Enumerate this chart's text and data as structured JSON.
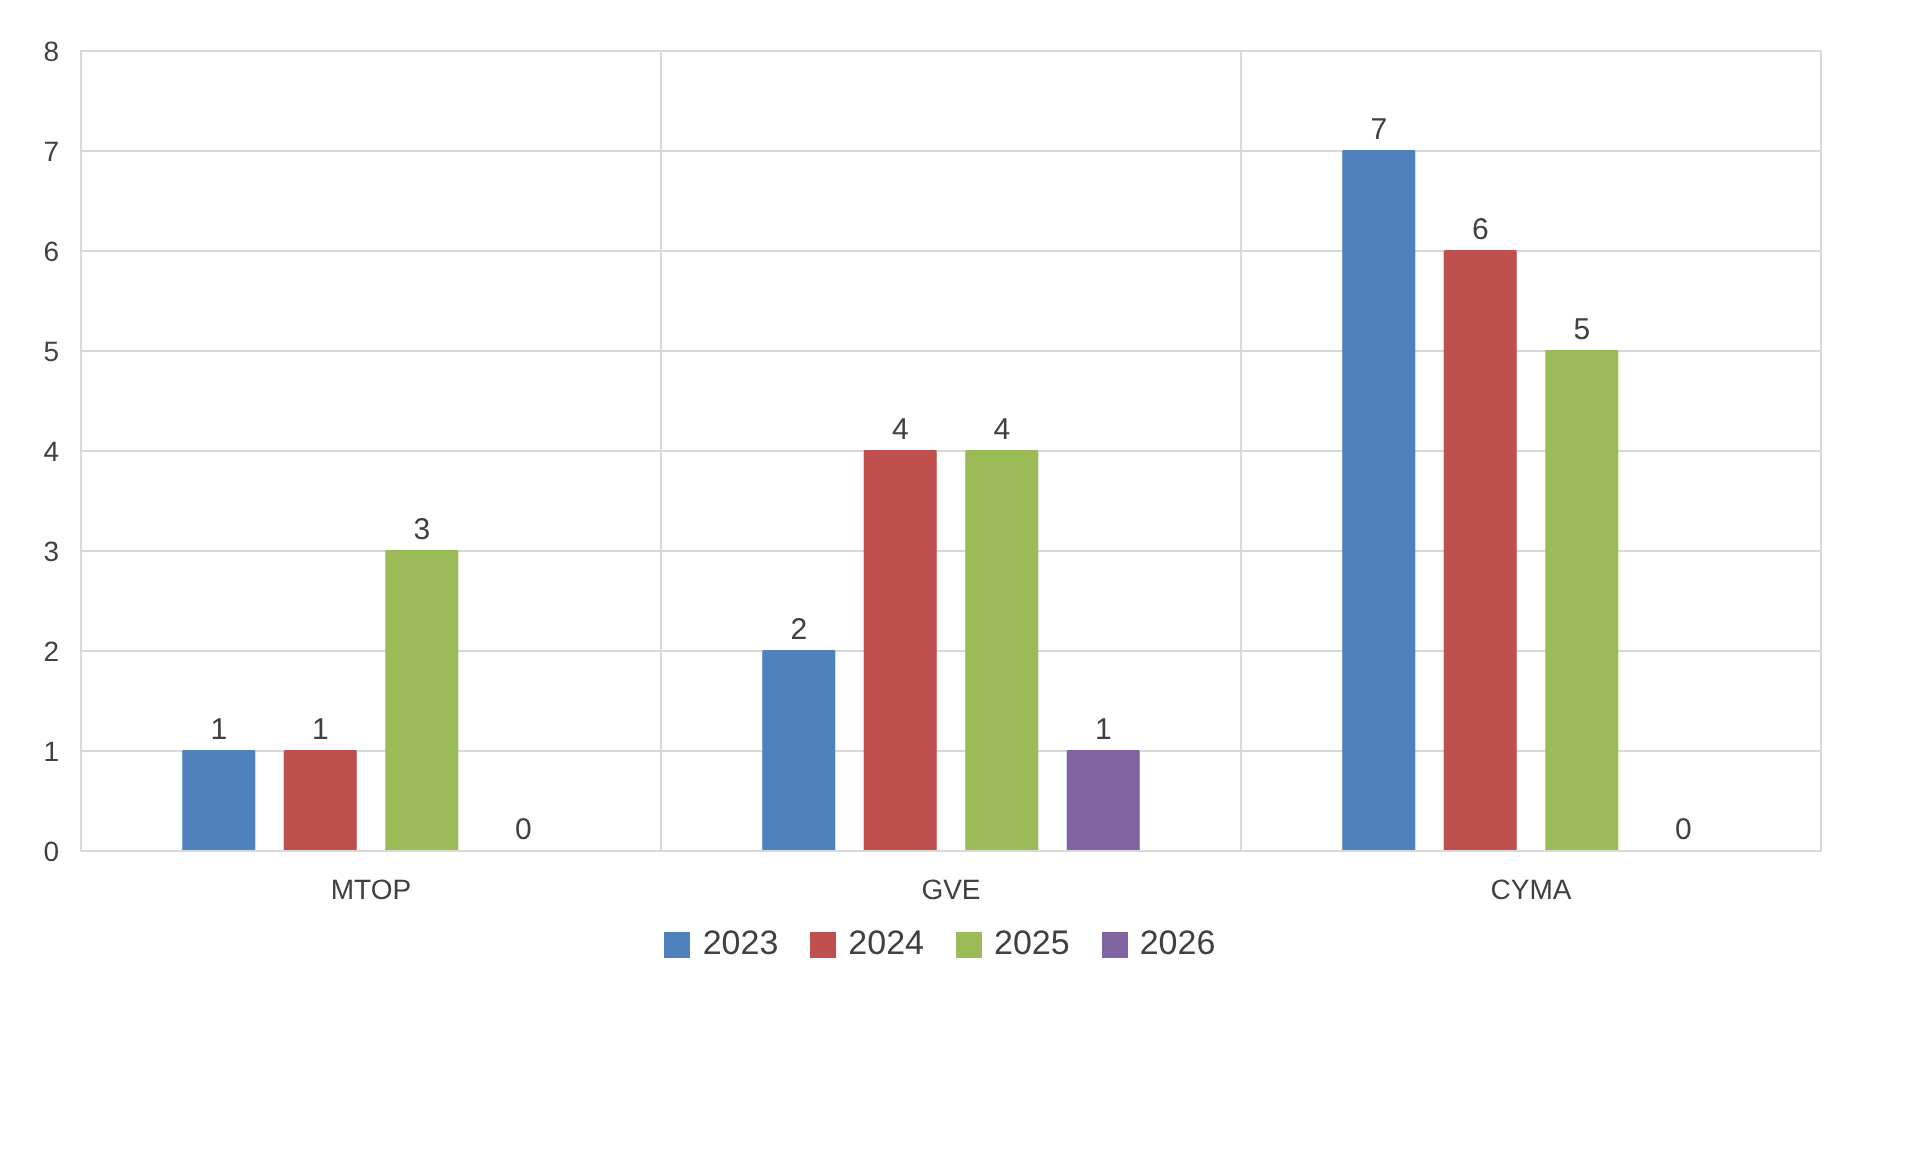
{
  "chart_data": {
    "type": "bar",
    "categories": [
      "MTOP",
      "GVE",
      "CYMA"
    ],
    "series": [
      {
        "name": "2023",
        "color": "#4f81bd",
        "values": [
          1,
          2,
          7
        ]
      },
      {
        "name": "2024",
        "color": "#c0504d",
        "values": [
          1,
          4,
          6
        ]
      },
      {
        "name": "2025",
        "color": "#9bbb59",
        "values": [
          3,
          4,
          5
        ]
      },
      {
        "name": "2026",
        "color": "#8064a2",
        "values": [
          0,
          1,
          0
        ]
      }
    ],
    "ylim": [
      0,
      8
    ],
    "yticks": [
      0,
      1,
      2,
      3,
      4,
      5,
      6,
      7,
      8
    ],
    "grid": true,
    "legend": "bottom",
    "data_labels": true
  }
}
